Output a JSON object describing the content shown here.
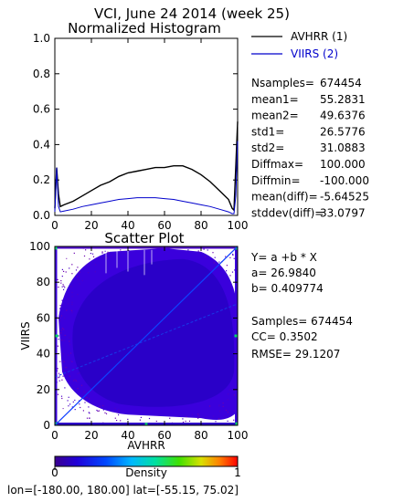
{
  "header": {
    "title": "VCI,  June 24 2014 (week 25)"
  },
  "histogram": {
    "title": "Normalized Histogram",
    "legend": [
      {
        "label": "AVHRR (1)",
        "color": "#000000"
      },
      {
        "label": "VIIRS (2)",
        "color": "#0000cc"
      }
    ],
    "x_ticks": [
      "0",
      "20",
      "40",
      "60",
      "80",
      "100"
    ],
    "y_ticks": [
      "0.0",
      "0.2",
      "0.4",
      "0.6",
      "0.8",
      "1.0"
    ]
  },
  "stats": [
    {
      "label": "Nsamples=",
      "value": "674454"
    },
    {
      "label": "mean1=",
      "value": "55.2831"
    },
    {
      "label": "mean2=",
      "value": "49.6376"
    },
    {
      "label": "std1=",
      "value": "26.5776"
    },
    {
      "label": "std2=",
      "value": "31.0883"
    },
    {
      "label": "Diffmax=",
      "value": "100.000"
    },
    {
      "label": "Diffmin=",
      "value": "-100.000"
    },
    {
      "label": "mean(diff)=",
      "value": "-5.64525"
    },
    {
      "label": "stddev(diff)=",
      "value": "33.0797"
    }
  ],
  "scatter": {
    "title": "Scatter Plot",
    "xlabel": "AVHRR",
    "ylabel": "VIIRS",
    "x_ticks": [
      "0",
      "20",
      "40",
      "60",
      "80",
      "100"
    ],
    "y_ticks": [
      "0",
      "20",
      "40",
      "60",
      "80",
      "100"
    ],
    "fit_lines": {
      "equation": "Y= a +b * X",
      "a": "a= 26.9840",
      "b": "b= 0.409774",
      "samples": "Samples= 674454",
      "cc": "CC=  0.3502",
      "rmse": "RMSE= 29.1207"
    }
  },
  "colorbar": {
    "label": "Density",
    "min": "0",
    "max": "1"
  },
  "footer": {
    "range": "lon=[-180.00, 180.00] lat=[-55.15, 75.02]"
  },
  "chart_data": [
    {
      "type": "line",
      "title": "Normalized Histogram",
      "xlim": [
        0,
        100
      ],
      "ylim": [
        0,
        1.0
      ],
      "series": [
        {
          "name": "AVHRR (1)",
          "color": "#000000",
          "x": [
            0,
            1,
            2,
            3,
            5,
            10,
            15,
            20,
            25,
            30,
            35,
            40,
            45,
            50,
            55,
            60,
            65,
            70,
            75,
            80,
            85,
            90,
            95,
            97,
            98,
            99,
            100
          ],
          "y": [
            0.04,
            0.27,
            0.12,
            0.05,
            0.06,
            0.08,
            0.11,
            0.14,
            0.17,
            0.19,
            0.22,
            0.24,
            0.25,
            0.26,
            0.27,
            0.27,
            0.28,
            0.28,
            0.26,
            0.23,
            0.19,
            0.14,
            0.09,
            0.04,
            0.03,
            0.28,
            0.53
          ]
        },
        {
          "name": "VIIRS (2)",
          "color": "#0000cc",
          "x": [
            0,
            1,
            2,
            3,
            5,
            10,
            15,
            20,
            25,
            30,
            35,
            40,
            45,
            50,
            55,
            60,
            65,
            70,
            75,
            80,
            85,
            90,
            95,
            97,
            98,
            99,
            100
          ],
          "y": [
            0.02,
            0.27,
            0.05,
            0.02,
            0.025,
            0.035,
            0.05,
            0.06,
            0.07,
            0.08,
            0.09,
            0.095,
            0.1,
            0.1,
            0.1,
            0.095,
            0.09,
            0.08,
            0.07,
            0.06,
            0.05,
            0.035,
            0.02,
            0.01,
            0.01,
            0.11,
            0.42
          ]
        }
      ]
    },
    {
      "type": "scatter",
      "title": "Scatter Plot",
      "xlabel": "AVHRR",
      "ylabel": "VIIRS",
      "xlim": [
        0,
        100
      ],
      "ylim": [
        0,
        100
      ],
      "fit": {
        "a": 26.984,
        "b": 0.409774
      },
      "colorbar": {
        "label": "Density",
        "range": [
          0,
          1
        ]
      }
    }
  ]
}
